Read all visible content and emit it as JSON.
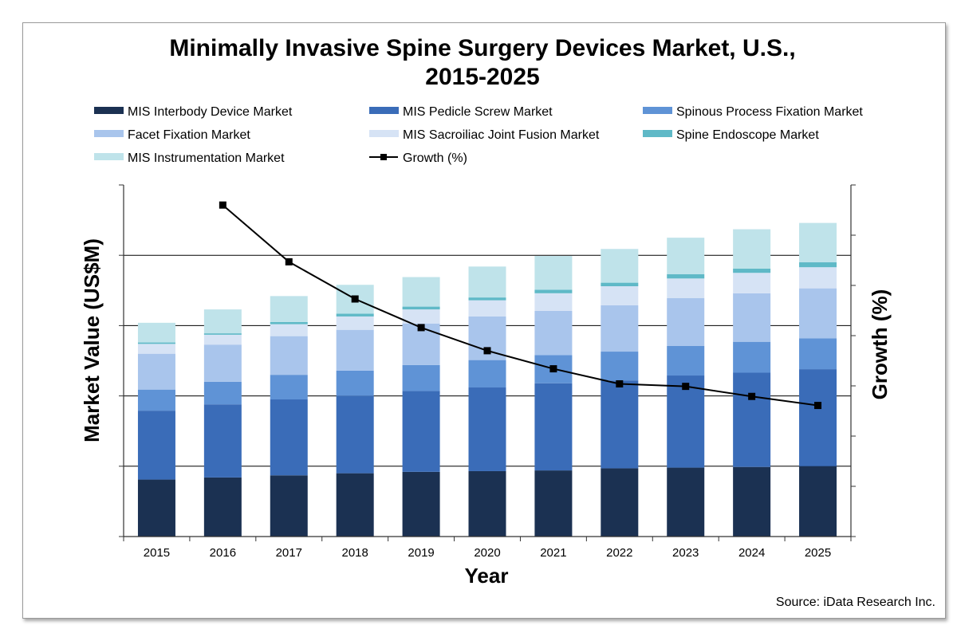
{
  "chart_data": {
    "type": "bar",
    "stacked": true,
    "title": "Minimally Invasive Spine Surgery Devices Market, U.S.,",
    "title_line2": "2015-2025",
    "xlabel": "Year",
    "ylabel": "Market Value (US$M)",
    "y2label": "Growth (%)",
    "source": "Source: iData Research Inc.",
    "categories": [
      "2015",
      "2016",
      "2017",
      "2018",
      "2019",
      "2020",
      "2021",
      "2022",
      "2023",
      "2024",
      "2025"
    ],
    "ylim": [
      0,
      5
    ],
    "y2lim": [
      0,
      7
    ],
    "grid": "horizontal",
    "legend_position": "top",
    "series": [
      {
        "name": "MIS Interbody Device Market",
        "color": "#1b3152",
        "values": [
          0.81,
          0.84,
          0.87,
          0.9,
          0.92,
          0.93,
          0.94,
          0.97,
          0.98,
          0.99,
          1.0
        ]
      },
      {
        "name": "MIS Pedicle Screw Market",
        "color": "#3a6cb8",
        "values": [
          0.98,
          1.04,
          1.08,
          1.1,
          1.15,
          1.19,
          1.24,
          1.25,
          1.31,
          1.34,
          1.38
        ]
      },
      {
        "name": "Spinous Process Fixation Market",
        "color": "#5f93d6",
        "values": [
          0.3,
          0.32,
          0.35,
          0.36,
          0.37,
          0.39,
          0.4,
          0.41,
          0.42,
          0.44,
          0.44
        ]
      },
      {
        "name": "Facet Fixation Market",
        "color": "#a9c5ec",
        "values": [
          0.51,
          0.53,
          0.55,
          0.58,
          0.59,
          0.62,
          0.63,
          0.66,
          0.68,
          0.69,
          0.71
        ]
      },
      {
        "name": "MIS Sacroiliac Joint Fusion Market",
        "color": "#d6e3f5",
        "values": [
          0.14,
          0.14,
          0.17,
          0.19,
          0.2,
          0.23,
          0.25,
          0.27,
          0.28,
          0.29,
          0.3
        ]
      },
      {
        "name": "Spine Endoscope Market",
        "color": "#5fb9c7",
        "values": [
          0.02,
          0.02,
          0.03,
          0.04,
          0.04,
          0.04,
          0.05,
          0.05,
          0.06,
          0.06,
          0.07
        ]
      },
      {
        "name": "MIS Instrumentation Market",
        "color": "#bfe3ea",
        "values": [
          0.28,
          0.34,
          0.37,
          0.41,
          0.42,
          0.44,
          0.48,
          0.48,
          0.52,
          0.56,
          0.56
        ]
      }
    ],
    "line_series": {
      "name": "Growth (%)",
      "color": "#000000",
      "values": [
        null,
        6.6,
        5.47,
        4.73,
        4.16,
        3.7,
        3.34,
        3.04,
        2.99,
        2.79,
        2.61
      ]
    }
  }
}
